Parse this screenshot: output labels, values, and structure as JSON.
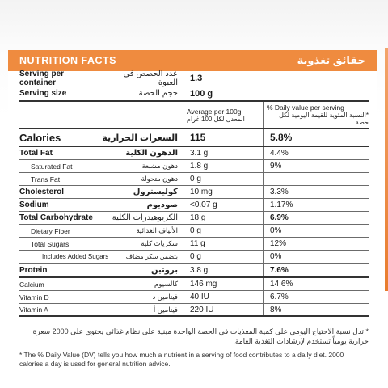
{
  "header": {
    "title_en": "NUTRITION FACTS",
    "title_ar": "حقائق تغذوية"
  },
  "serving_container": {
    "label_en": "Serving per container",
    "label_ar": "عدد الحصص في العبوة",
    "value": "1.3"
  },
  "serving_size": {
    "label_en": "Serving size",
    "label_ar": "حجم الحصة",
    "value": "100 g"
  },
  "columns": {
    "avg_en": "Average per 100g",
    "avg_ar": "المعدل لكل 100 غرام",
    "dv_en": "% Daily value per serving",
    "dv_ar": "*النسبة المئوية للقيمة اليومية لكل حصة"
  },
  "rows": [
    {
      "en": "Calories",
      "ar": "السعرات الحرارية",
      "value": "115",
      "dv": "5.8%"
    },
    {
      "en": "Total Fat",
      "ar": "الدهون الكلية",
      "value": "3.1 g",
      "dv": "4.4%"
    },
    {
      "en": "Saturated Fat",
      "ar": "دهون مشبعة",
      "value": "1.8 g",
      "dv": "9%"
    },
    {
      "en": "Trans Fat",
      "ar": "دهون متحولة",
      "value": "0 g",
      "dv": ""
    },
    {
      "en": "Cholesterol",
      "ar": "كوليسترول",
      "value": "10 mg",
      "dv": "3.3%"
    },
    {
      "en": "Sodium",
      "ar": "صوديوم",
      "value": "<0.07 g",
      "dv": "1.17%"
    },
    {
      "en": "Total Carbohydrate",
      "ar": "الكربوهيدرات الكلية",
      "value": "18 g",
      "dv": "6.9%"
    },
    {
      "en": "Dietary Fiber",
      "ar": "الألياف الغذائية",
      "value": "0 g",
      "dv": "0%"
    },
    {
      "en": "Total Sugars",
      "ar": "سكريات كلية",
      "value": "11 g",
      "dv": "12%"
    },
    {
      "en": "Includes Added Sugars",
      "ar": "يتضمن سكر مضاف",
      "value": "0 g",
      "dv": "0%"
    },
    {
      "en": "Protein",
      "ar": "بروتين",
      "value": "3.8 g",
      "dv": "7.6%"
    },
    {
      "en": "Calcium",
      "ar": "كالسيوم",
      "value": "146 mg",
      "dv": "14.6%"
    },
    {
      "en": "Vitamin D",
      "ar": "فيتامين د",
      "value": "40 IU",
      "dv": "6.7%"
    },
    {
      "en": "Vitamin A",
      "ar": "فيتامين أ",
      "value": "220 IU",
      "dv": "8%"
    }
  ],
  "notes": {
    "ar": "* تدل نسبة الاحتياج اليومي على كمية المغذيات في الحصة الواحدة مبنية على نظام غذائي يحتوي على 2000 سعرة حرارية يومياً تستخدم لإرشادات التغذية العامة.",
    "en": "* The % Daily Value (DV) tells you how much a nutrient in a serving of food contributes to a daily diet. 2000 calories a day is used for general nutrition advice."
  },
  "colors": {
    "accent": "#ef8b3f",
    "text": "#1a1a1a",
    "rule": "#6b6b6b"
  }
}
